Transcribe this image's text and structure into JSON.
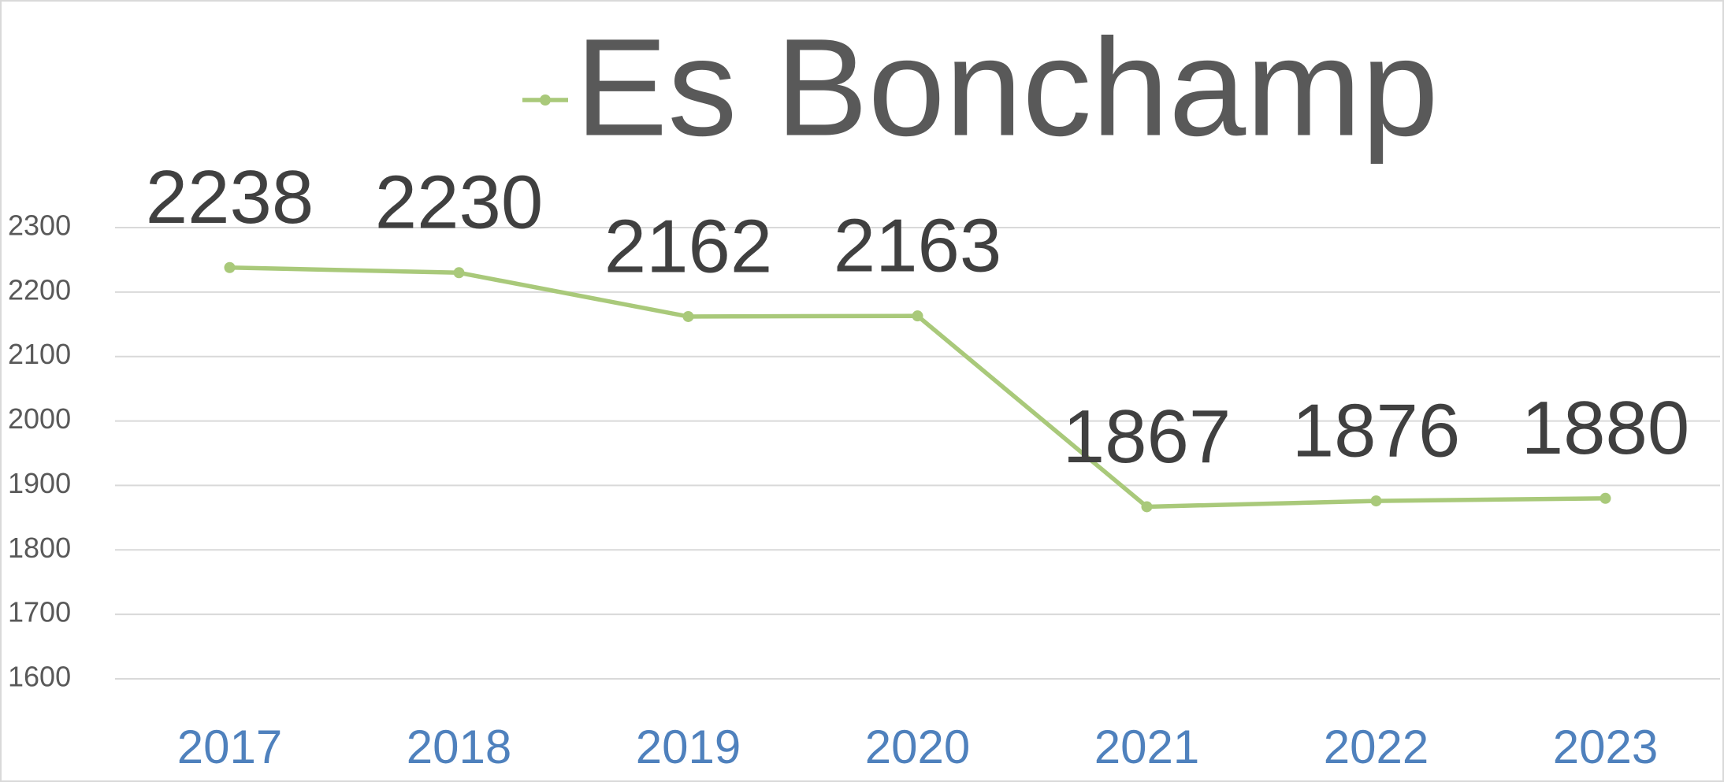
{
  "chart_data": {
    "type": "line",
    "categories": [
      "2017",
      "2018",
      "2019",
      "2020",
      "2021",
      "2022",
      "2023"
    ],
    "series": [
      {
        "name": "Es Bonchamp",
        "color": "#a9c97a",
        "values": [
          2238,
          2230,
          2162,
          2163,
          1867,
          1876,
          1880
        ]
      }
    ],
    "ylim": [
      1600,
      2300
    ],
    "yticks": [
      1600,
      1700,
      1800,
      1900,
      2000,
      2100,
      2200,
      2300
    ],
    "grid": true,
    "legend": "top"
  }
}
